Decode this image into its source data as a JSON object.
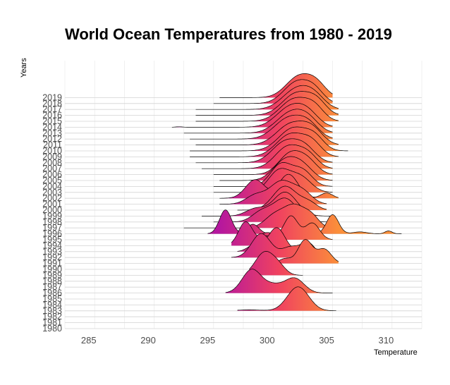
{
  "chart_data": {
    "type": "ridgeline",
    "title": "World Ocean Temperatures from 1980 - 2019",
    "xlabel": "Temperature",
    "ylabel": "Years",
    "xlim": [
      283,
      313
    ],
    "x_ticks": [
      285,
      290,
      295,
      300,
      305,
      310
    ],
    "grid": true,
    "legend": "none",
    "color_gradient": [
      "#b5179e",
      "#f0425f",
      "#fb8f3a"
    ],
    "gradient_range": [
      296,
      306
    ],
    "years": [
      "1980",
      "1981",
      "1982",
      "1983",
      "1984",
      "1985",
      "1986",
      "1987",
      "1988",
      "1989",
      "1990",
      "1991",
      "1992",
      "1993",
      "1994",
      "1995",
      "1996",
      "1997",
      "1998",
      "1999",
      "2000",
      "2001",
      "2002",
      "2003",
      "2004",
      "2005",
      "2006",
      "2007",
      "2008",
      "2009",
      "2010",
      "2011",
      "2012",
      "2013",
      "2014",
      "2015",
      "2016",
      "2017",
      "2018",
      "2019"
    ],
    "series": [
      {
        "year": "1980",
        "components": []
      },
      {
        "year": "1983",
        "min": 297.5,
        "max": 305.8,
        "components": [
          [
            302.6,
            0.9,
            1.0
          ],
          [
            298.5,
            1.0,
            0.04
          ]
        ]
      },
      {
        "year": "1986",
        "min": 296.5,
        "max": 305.5,
        "components": [
          [
            298.7,
            0.8,
            0.95
          ],
          [
            302.3,
            0.8,
            0.6
          ],
          [
            300.5,
            0.8,
            0.3
          ]
        ]
      },
      {
        "year": "1989",
        "min": 298.5,
        "max": 303.0,
        "components": [
          [
            299.8,
            0.8,
            1.0
          ],
          [
            301.0,
            0.6,
            0.3
          ]
        ]
      },
      {
        "year": "1991",
        "min": 300.0,
        "max": 306.0,
        "components": [
          [
            303.2,
            0.6,
            1.0
          ],
          [
            304.8,
            0.6,
            0.6
          ],
          [
            301.5,
            0.5,
            0.2
          ]
        ]
      },
      {
        "year": "1992",
        "min": 297.0,
        "max": 305.5,
        "components": [
          [
            299.5,
            0.8,
            0.9
          ],
          [
            302.0,
            0.8,
            0.4
          ],
          [
            303.5,
            0.6,
            0.5
          ]
        ]
      },
      {
        "year": "1993",
        "min": 297.5,
        "max": 304.0,
        "components": [
          [
            300.8,
            0.7,
            1.0
          ],
          [
            299.0,
            0.6,
            0.3
          ]
        ]
      },
      {
        "year": "1994",
        "min": 297.0,
        "max": 302.0,
        "components": [
          [
            298.2,
            0.6,
            1.0
          ],
          [
            300.0,
            0.6,
            0.4
          ]
        ]
      },
      {
        "year": "1995",
        "min": 298.0,
        "max": 305.5,
        "components": [
          [
            302.0,
            0.6,
            1.0
          ],
          [
            303.8,
            0.6,
            0.7
          ],
          [
            300.0,
            0.6,
            0.3
          ]
        ]
      },
      {
        "year": "1996",
        "min": 295.0,
        "max": 311.3,
        "components": [
          [
            296.5,
            0.5,
            1.0
          ],
          [
            298.8,
            0.5,
            0.4
          ],
          [
            305.5,
            0.5,
            0.8
          ],
          [
            307.8,
            0.6,
            0.08
          ],
          [
            310.2,
            0.3,
            0.12
          ]
        ]
      },
      {
        "year": "1997",
        "min": 293.0,
        "max": 306.0,
        "components": [
          [
            302.3,
            1.0,
            0.9
          ],
          [
            300.5,
            0.8,
            0.4
          ],
          [
            303.8,
            0.6,
            0.3
          ]
        ]
      },
      {
        "year": "1998",
        "min": 295.5,
        "max": 306.0,
        "components": [
          [
            301.5,
            1.0,
            1.0
          ],
          [
            299.5,
            0.8,
            0.4
          ]
        ]
      },
      {
        "year": "1999",
        "min": 294.5,
        "max": 305.5,
        "components": [
          [
            301.5,
            1.0,
            1.0
          ],
          [
            299.0,
            0.8,
            0.3
          ]
        ]
      },
      {
        "year": "2000",
        "min": 297.5,
        "max": 305.0,
        "components": [
          [
            301.5,
            1.0,
            1.0
          ],
          [
            303.5,
            0.7,
            0.3
          ]
        ]
      },
      {
        "year": "2001",
        "min": 296.0,
        "max": 305.0,
        "components": [
          [
            301.2,
            1.0,
            0.8
          ],
          [
            299.0,
            0.8,
            0.3
          ],
          [
            303.0,
            0.8,
            0.4
          ]
        ]
      },
      {
        "year": "2002",
        "min": 296.0,
        "max": 306.0,
        "components": [
          [
            299.0,
            0.8,
            0.7
          ],
          [
            301.8,
            0.8,
            0.9
          ],
          [
            305.0,
            0.5,
            0.2
          ]
        ]
      },
      {
        "year": "2003",
        "min": 295.5,
        "max": 305.5,
        "components": [
          [
            301.0,
            0.9,
            1.0
          ],
          [
            302.8,
            0.9,
            0.7
          ]
        ]
      },
      {
        "year": "2004",
        "min": 295.5,
        "max": 305.5,
        "components": [
          [
            301.2,
            0.9,
            0.9
          ],
          [
            303.0,
            0.8,
            0.6
          ]
        ]
      },
      {
        "year": "2005",
        "min": 296.0,
        "max": 305.5,
        "components": [
          [
            301.5,
            1.0,
            0.9
          ],
          [
            303.0,
            0.9,
            0.6
          ]
        ]
      },
      {
        "year": "2006",
        "min": 295.5,
        "max": 305.5,
        "components": [
          [
            302.0,
            1.0,
            1.0
          ],
          [
            303.5,
            0.8,
            0.5
          ]
        ]
      },
      {
        "year": "2007",
        "min": 294.5,
        "max": 305.5,
        "components": [
          [
            301.8,
            1.1,
            1.0
          ],
          [
            303.5,
            0.8,
            0.5
          ]
        ]
      },
      {
        "year": "2008",
        "min": 294.0,
        "max": 305.5,
        "components": [
          [
            301.5,
            1.1,
            0.9
          ],
          [
            303.2,
            0.9,
            0.6
          ]
        ]
      },
      {
        "year": "2009",
        "min": 293.5,
        "max": 306.0,
        "components": [
          [
            302.0,
            1.2,
            1.0
          ],
          [
            303.8,
            0.8,
            0.5
          ]
        ]
      },
      {
        "year": "2010",
        "min": 293.5,
        "max": 306.8,
        "components": [
          [
            302.2,
            1.2,
            1.0
          ],
          [
            304.0,
            0.8,
            0.5
          ]
        ]
      },
      {
        "year": "2011",
        "min": 294.0,
        "max": 306.0,
        "components": [
          [
            302.0,
            1.2,
            0.9
          ],
          [
            303.8,
            0.9,
            0.6
          ]
        ]
      },
      {
        "year": "2012",
        "min": 293.5,
        "max": 305.5,
        "components": [
          [
            301.8,
            1.2,
            1.0
          ],
          [
            303.5,
            0.9,
            0.6
          ]
        ]
      },
      {
        "year": "2013",
        "min": 293.0,
        "max": 305.5,
        "components": [
          [
            302.0,
            1.2,
            1.0
          ],
          [
            303.5,
            0.9,
            0.5
          ]
        ]
      },
      {
        "year": "2014",
        "min": 292.0,
        "max": 305.5,
        "components": [
          [
            302.0,
            1.2,
            1.0
          ],
          [
            303.5,
            0.9,
            0.5
          ],
          [
            292.6,
            0.3,
            0.02
          ]
        ]
      },
      {
        "year": "2015",
        "min": 294.0,
        "max": 306.0,
        "components": [
          [
            302.3,
            1.2,
            1.0
          ],
          [
            304.0,
            0.8,
            0.5
          ]
        ]
      },
      {
        "year": "2016",
        "min": 294.0,
        "max": 306.0,
        "components": [
          [
            302.5,
            1.2,
            1.0
          ],
          [
            304.2,
            0.8,
            0.5
          ]
        ]
      },
      {
        "year": "2017",
        "min": 294.0,
        "max": 306.0,
        "components": [
          [
            302.5,
            1.2,
            1.0
          ],
          [
            304.0,
            0.9,
            0.5
          ]
        ]
      },
      {
        "year": "2018",
        "min": 295.5,
        "max": 305.5,
        "components": [
          [
            302.5,
            1.1,
            1.0
          ],
          [
            304.0,
            0.8,
            0.5
          ]
        ]
      },
      {
        "year": "2019",
        "min": 296.0,
        "max": 305.5,
        "components": [
          [
            302.7,
            1.1,
            1.0
          ],
          [
            304.2,
            0.8,
            0.5
          ]
        ]
      }
    ]
  }
}
